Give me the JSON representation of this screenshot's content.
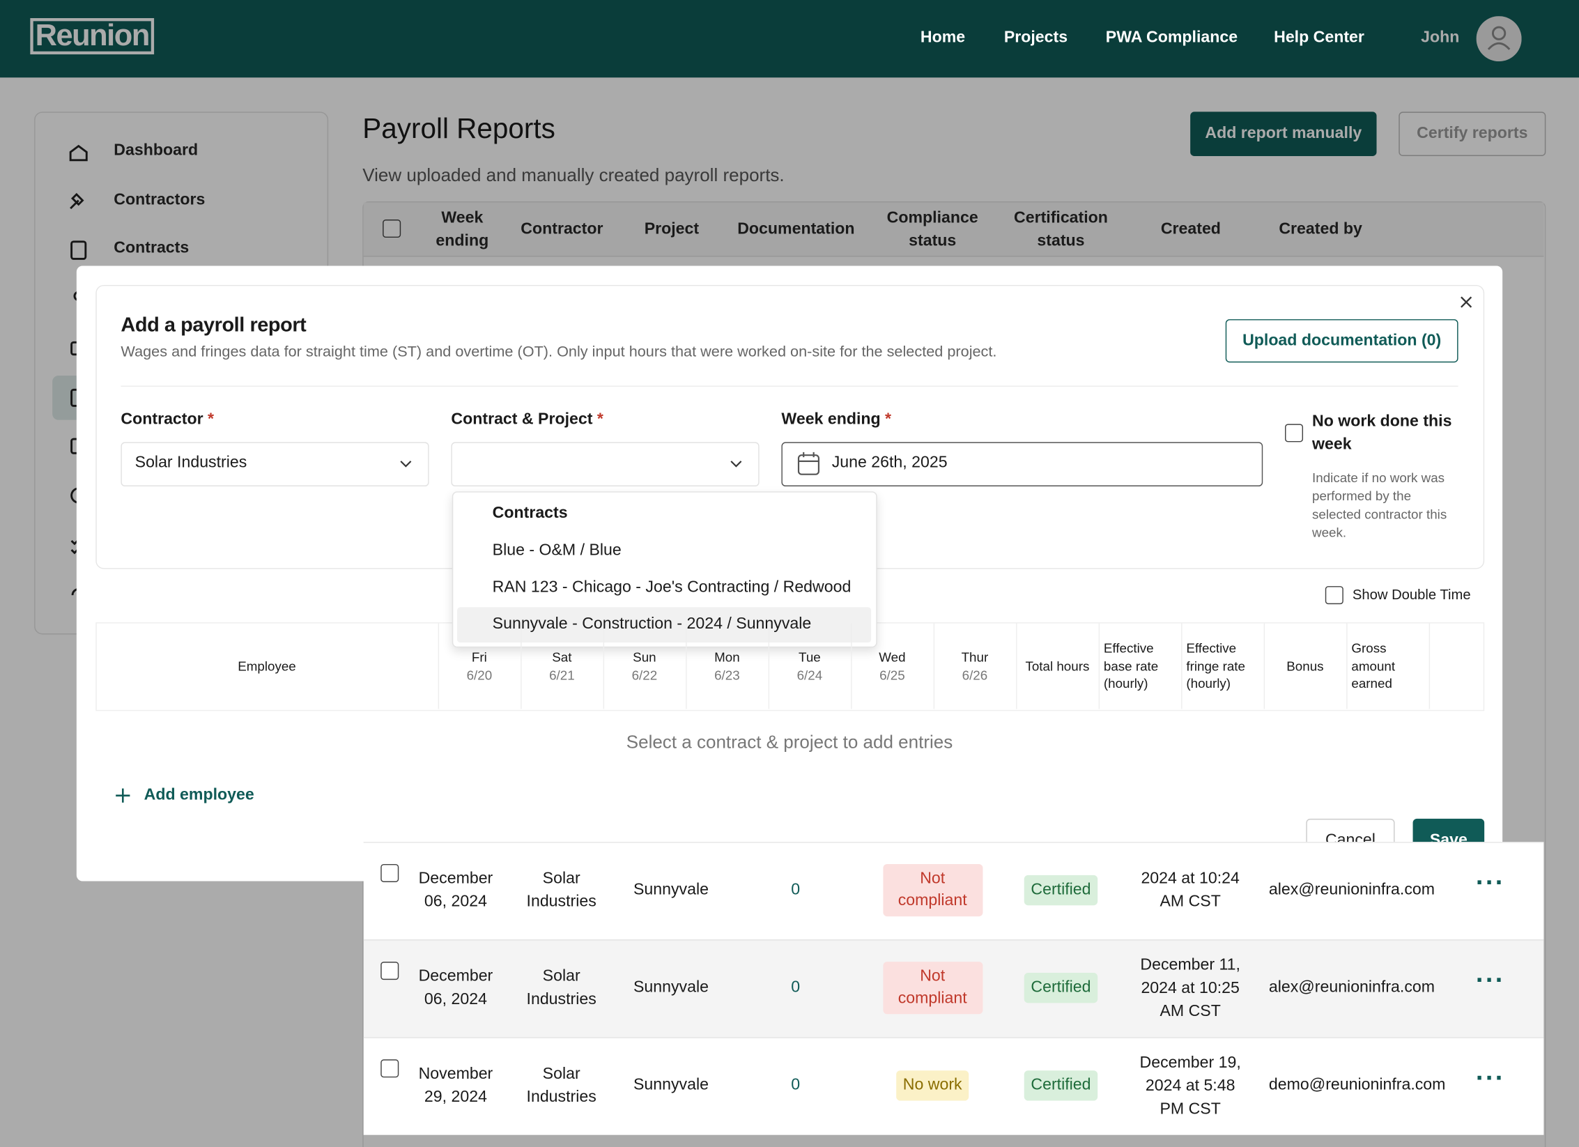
{
  "header": {
    "logo": "Reunion",
    "nav": [
      "Home",
      "Projects",
      "PWA Compliance",
      "Help Center"
    ],
    "user": "John"
  },
  "sidebar": {
    "items": [
      "Dashboard",
      "Contractors",
      "Contracts"
    ]
  },
  "page": {
    "title": "Payroll Reports",
    "subtitle": "View uploaded and manually created payroll reports.",
    "buttons": [
      "Add report manually",
      "Certify reports"
    ]
  },
  "table": {
    "columns": [
      "Week ending",
      "Contractor",
      "Project",
      "Documentation",
      "Compliance status",
      "Certification status",
      "Created",
      "Created by"
    ],
    "rows": [
      {
        "week": "December 06, 2024",
        "contractor": "Solar Industries",
        "project": "Sunnyvale",
        "documentation": 0,
        "compliance": "Not compliant",
        "certification": "Certified",
        "created": "2024 at 10:24 AM CST",
        "created_by": "alex@reunioninfra.com"
      },
      {
        "week": "December 06, 2024",
        "contractor": "Solar Industries",
        "project": "Sunnyvale",
        "documentation": 0,
        "compliance": "Not compliant",
        "certification": "Certified",
        "created": "December 11, 2024 at 10:25 AM CST",
        "created_by": "alex@reunioninfra.com"
      },
      {
        "week": "November 29, 2024",
        "contractor": "Solar Industries",
        "project": "Sunnyvale",
        "documentation": 0,
        "compliance": "No work",
        "certification": "Certified",
        "created": "December 19, 2024 at 5:48 PM CST",
        "created_by": "demo@reunioninfra.com"
      }
    ]
  },
  "modal": {
    "title": "Add a payroll report",
    "description": "Wages and fringes data for straight time (ST) and overtime (OT). Only input hours that were worked on-site for the selected project.",
    "upload": "Upload documentation (0)",
    "required": "*",
    "fields": {
      "contractor": {
        "label": "Contractor",
        "value": "Solar Industries"
      },
      "contract": {
        "label": "Contract & Project"
      },
      "week": {
        "label": "Week ending",
        "value": "June 26th, 2025"
      }
    },
    "no_work": {
      "label": "No work done this week",
      "help": "Indicate if no work was performed by the selected contractor this week."
    },
    "dropdown": {
      "group": "Contracts",
      "options": [
        "Blue - O&M / Blue",
        "RAN 123 - Chicago - Joe's Contracting / Redwood",
        "Sunnyvale - Construction - 2024 / Sunnyvale"
      ]
    },
    "double_time": "Show Double Time",
    "columns": {
      "employee": "Employee",
      "days": [
        {
          "day": "Fri",
          "date": "6/20"
        },
        {
          "day": "Sat",
          "date": "6/21"
        },
        {
          "day": "Sun",
          "date": "6/22"
        },
        {
          "day": "Mon",
          "date": "6/23"
        },
        {
          "day": "Tue",
          "date": "6/24"
        },
        {
          "day": "Wed",
          "date": "6/25"
        },
        {
          "day": "Thur",
          "date": "6/26"
        }
      ],
      "other": [
        "Total hours",
        "Effective base rate (hourly)",
        "Effective fringe rate (hourly)",
        "Bonus",
        "Gross amount earned"
      ]
    },
    "empty": "Select a contract & project to add entries",
    "add_employee": "Add employee",
    "cancel": "Cancel",
    "save": "Save"
  }
}
